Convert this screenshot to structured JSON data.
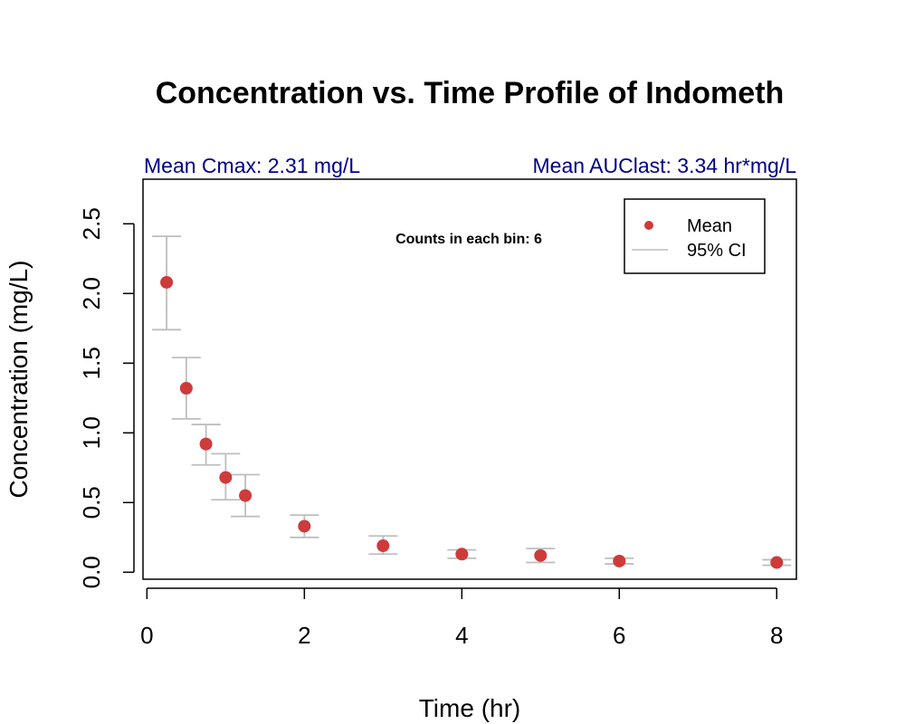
{
  "colors": {
    "point": "#cd3b3b",
    "ci": "#bebebe",
    "subtitle": "#00008b"
  },
  "chart_data": {
    "type": "scatter",
    "title": "Concentration vs. Time Profile of Indometh",
    "subtitle_left": "Mean Cmax: 2.31 mg/L",
    "subtitle_right": "Mean AUClast: 3.34 hr*mg/L",
    "xlabel": "Time (hr)",
    "ylabel": "Concentration (mg/L)",
    "annotation": "Counts in each bin: 6",
    "xlim": [
      -0.05,
      8.25
    ],
    "ylim": [
      -0.05,
      2.82
    ],
    "x_ticks": [
      "0",
      "2",
      "4",
      "6",
      "8"
    ],
    "y_ticks": [
      "0.0",
      "0.5",
      "1.0",
      "1.5",
      "2.0",
      "2.5"
    ],
    "legend_position": "top-right",
    "series": [
      {
        "name": "Mean",
        "x": [
          0.25,
          0.5,
          0.75,
          1,
          1.25,
          2,
          3,
          4,
          5,
          6,
          8
        ],
        "y": [
          2.08,
          1.32,
          0.92,
          0.68,
          0.55,
          0.33,
          0.19,
          0.13,
          0.12,
          0.08,
          0.07
        ]
      },
      {
        "name": "95% CI",
        "x": [
          0.25,
          0.5,
          0.75,
          1,
          1.25,
          2,
          3,
          4,
          5,
          6,
          8
        ],
        "lower": [
          1.74,
          1.1,
          0.77,
          0.52,
          0.4,
          0.25,
          0.13,
          0.1,
          0.07,
          0.06,
          0.05
        ],
        "upper": [
          2.41,
          1.54,
          1.06,
          0.85,
          0.7,
          0.41,
          0.26,
          0.16,
          0.17,
          0.1,
          0.09
        ]
      }
    ]
  }
}
